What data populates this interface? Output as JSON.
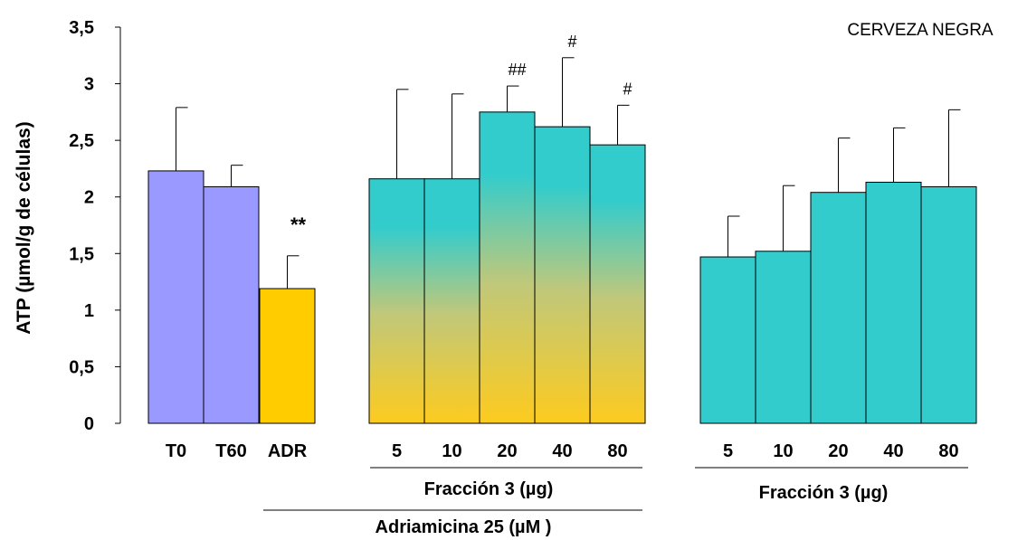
{
  "chart_data": {
    "type": "bar",
    "title": "CERVEZA NEGRA",
    "ylabel": "ATP (µmol/g de células)",
    "xlabel": "",
    "ylim": [
      0,
      3.5
    ],
    "yticks": [
      "0",
      "0,5",
      "1",
      "1,5",
      "2",
      "2,5",
      "3",
      "3,5"
    ],
    "yticks_values": [
      0,
      0.5,
      1,
      1.5,
      2,
      2.5,
      3,
      3.5
    ],
    "colors": {
      "control": "#9999ff",
      "adr": "#ffcc00",
      "fraccion": "#33cccc"
    },
    "bars": [
      {
        "label": "T0",
        "value": 2.23,
        "error": 0.56,
        "annotation": "",
        "color": "control"
      },
      {
        "label": "T60",
        "value": 2.09,
        "error": 0.19,
        "annotation": "",
        "color": "control"
      },
      {
        "label": "ADR",
        "value": 1.19,
        "error": 0.29,
        "annotation": "**",
        "color": "adr"
      },
      {
        "label": "5",
        "value": 2.16,
        "error": 0.79,
        "annotation": "",
        "color": "gradient"
      },
      {
        "label": "10",
        "value": 2.16,
        "error": 0.75,
        "annotation": "",
        "color": "gradient"
      },
      {
        "label": "20",
        "value": 2.75,
        "error": 0.23,
        "annotation": "##",
        "color": "gradient"
      },
      {
        "label": "40",
        "value": 2.62,
        "error": 0.61,
        "annotation": "#",
        "color": "gradient"
      },
      {
        "label": "80",
        "value": 2.46,
        "error": 0.35,
        "annotation": "#",
        "color": "gradient"
      },
      {
        "label": "5",
        "value": 1.47,
        "error": 0.36,
        "annotation": "",
        "color": "fraccion"
      },
      {
        "label": "10",
        "value": 1.52,
        "error": 0.58,
        "annotation": "",
        "color": "fraccion"
      },
      {
        "label": "20",
        "value": 2.04,
        "error": 0.48,
        "annotation": "",
        "color": "fraccion"
      },
      {
        "label": "40",
        "value": 2.13,
        "error": 0.48,
        "annotation": "",
        "color": "fraccion"
      },
      {
        "label": "80",
        "value": 2.09,
        "error": 0.68,
        "annotation": "",
        "color": "fraccion"
      }
    ],
    "group_labels": {
      "fraccion_left": "Fracción 3 (µg)",
      "fraccion_right": "Fracción 3 (µg)",
      "adriamicina": "Adriamicina 25 (µM )"
    }
  }
}
